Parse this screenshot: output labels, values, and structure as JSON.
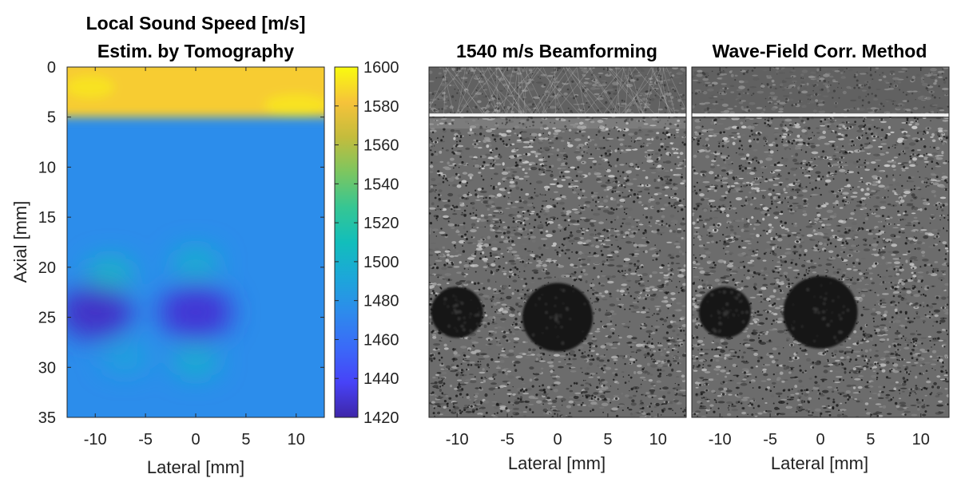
{
  "chart_data": [
    {
      "type": "heatmap",
      "title_lines": [
        "Local Sound Speed [m/s]",
        "Estim. by Tomography"
      ],
      "xlabel": "Lateral [mm]",
      "ylabel": "Axial [mm]",
      "xlim": [
        -12.8,
        12.8
      ],
      "ylim": [
        0,
        35
      ],
      "x_ticks": [
        -10,
        -5,
        0,
        5,
        10
      ],
      "y_ticks": [
        0,
        5,
        10,
        15,
        20,
        25,
        30,
        35
      ],
      "colorbar": {
        "range": [
          1420,
          1600
        ],
        "ticks": [
          1600,
          1580,
          1560,
          1540,
          1520,
          1500,
          1480,
          1460,
          1440,
          1420
        ],
        "colormap": "parula"
      },
      "background_speed": 1475,
      "features": [
        {
          "kind": "band",
          "label": "top layer",
          "x_center": 0,
          "y_center": 2.5,
          "value": 1585
        },
        {
          "kind": "blob",
          "x_center": -10,
          "y_center": 24.5,
          "value": 1427
        },
        {
          "kind": "blob",
          "x_center": 0,
          "y_center": 24.5,
          "value": 1430
        },
        {
          "kind": "blob",
          "x_center": -8.5,
          "y_center": 20.5,
          "value": 1505
        },
        {
          "kind": "blob",
          "x_center": 0,
          "y_center": 19.5,
          "value": 1500
        },
        {
          "kind": "blob",
          "x_center": 0,
          "y_center": 29.5,
          "value": 1500
        },
        {
          "kind": "blob",
          "x_center": -7,
          "y_center": 29,
          "value": 1490
        }
      ]
    },
    {
      "type": "heatmap",
      "title": "1540 m/s Beamforming",
      "xlabel": "Lateral [mm]",
      "xlim": [
        -12.8,
        12.8
      ],
      "ylim": [
        0,
        35
      ],
      "x_ticks": [
        -10,
        -5,
        0,
        5,
        10
      ],
      "colormap": "gray",
      "interface_depth_mm": 4.8,
      "cysts": [
        {
          "x_center": -10,
          "y_center": 24.5,
          "radius_mm": 2.6
        },
        {
          "x_center": 0,
          "y_center": 25,
          "radius_mm": 3.5
        }
      ]
    },
    {
      "type": "heatmap",
      "title": "Wave-Field Corr. Method",
      "xlabel": "Lateral [mm]",
      "xlim": [
        -12.8,
        12.8
      ],
      "ylim": [
        0,
        35
      ],
      "x_ticks": [
        -10,
        -5,
        0,
        5,
        10
      ],
      "colormap": "gray",
      "interface_depth_mm": 4.8,
      "cysts": [
        {
          "x_center": -9.5,
          "y_center": 24.5,
          "radius_mm": 2.6
        },
        {
          "x_center": 0,
          "y_center": 24.5,
          "radius_mm": 3.7
        }
      ]
    }
  ]
}
